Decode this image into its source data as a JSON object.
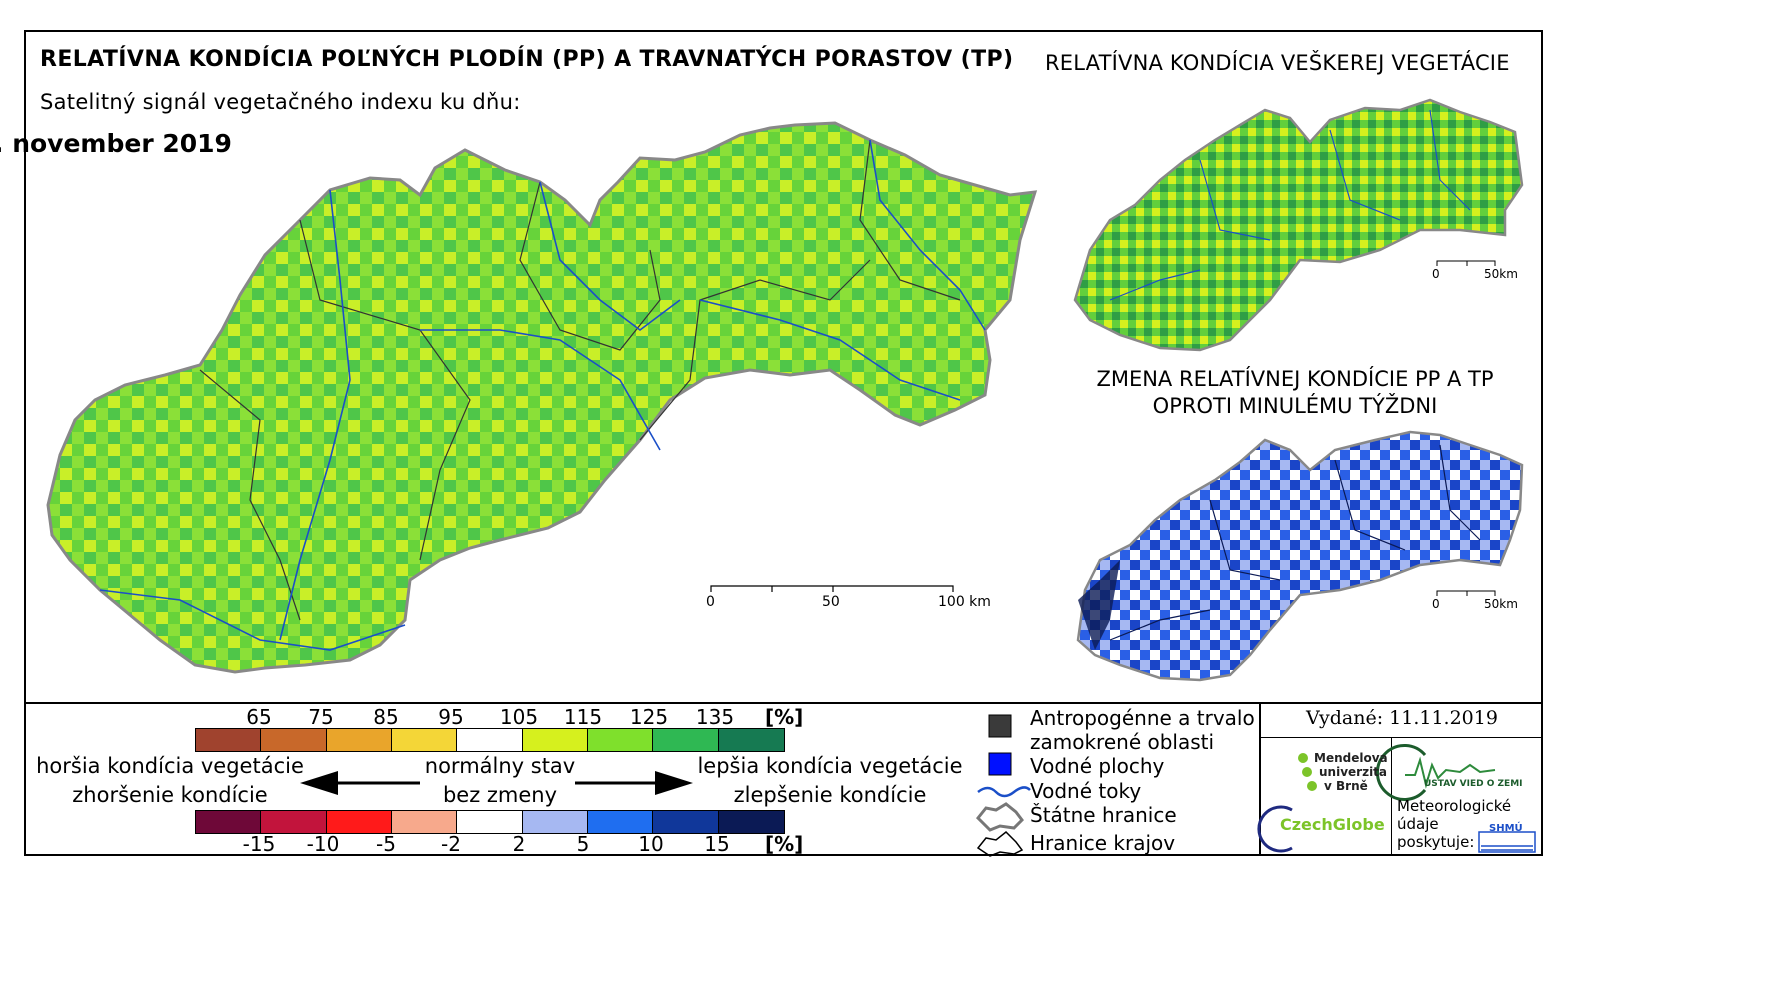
{
  "titles": {
    "main": "RELATÍVNA KONDÍCIA POĽNÝCH PLODÍN (PP) A TRAVNATÝCH PORASTOV (TP)",
    "subtitle": "Satelitný signál vegetačného indexu ku dňu:",
    "date": ". november 2019",
    "right_top": "RELATÍVNA KONDÍCIA VEŠKEREJ VEGETÁCIE",
    "right_bottom_line1": "ZMENA RELATÍVNEJ KONDÍCIE PP A TP",
    "right_bottom_line2": "OPROTI MINULÉMU TÝŽDNI"
  },
  "scale_main": {
    "labels": [
      "0",
      "50",
      "100 km"
    ]
  },
  "scale_small": {
    "labels": [
      "0",
      "50km"
    ]
  },
  "legend_condition": {
    "ticks": [
      "65",
      "75",
      "85",
      "95",
      "105",
      "115",
      "125",
      "135"
    ],
    "unit": "[%]",
    "colors": [
      "#a0432e",
      "#c8682a",
      "#e9a52b",
      "#f4d637",
      "#ffffff",
      "#d6f01e",
      "#7fe02c",
      "#2fb853",
      "#167a52"
    ]
  },
  "legend_change": {
    "ticks": [
      "-15",
      "-10",
      "-5",
      "-2",
      "2",
      "5",
      "10",
      "15"
    ],
    "unit": "[%]",
    "colors": [
      "#6e0838",
      "#c2143c",
      "#ff1a1a",
      "#f7a98c",
      "#ffffff",
      "#a6b8f2",
      "#1f6ef0",
      "#10379a",
      "#0b1a55"
    ]
  },
  "legend_text": {
    "worse": "horšia kondícia vegetácie",
    "worse2": "zhoršenie kondície",
    "normal": "normálny stav",
    "normal2": "bez zmeny",
    "better": "lepšia kondícia vegetácie",
    "better2": "zlepšenie kondície"
  },
  "symbols": {
    "anthropogenic": "Antropogénne a trvalo",
    "anthropogenic2": "zamokrené oblasti",
    "water_areas": "Vodné plochy",
    "water_streams": "Vodné toky",
    "state_border": "Štátne hranice",
    "region_border": "Hranice krajov"
  },
  "issued": "Vydané: 11.11.2019",
  "logos": {
    "mendel": [
      "Mendelova",
      "univerzita",
      "v Brně"
    ],
    "czechglobe": "CzechGlobe",
    "ustav": "ÚSTAV VIED O ZEMI",
    "meteo": [
      "Meteorologické",
      "údaje",
      "poskytuje:"
    ],
    "shmu": "SHMÚ"
  },
  "colors": {
    "map_main_fill": "#67d33a",
    "map_change_fill": "#2a5fe6",
    "river": "#1b4fc8"
  }
}
